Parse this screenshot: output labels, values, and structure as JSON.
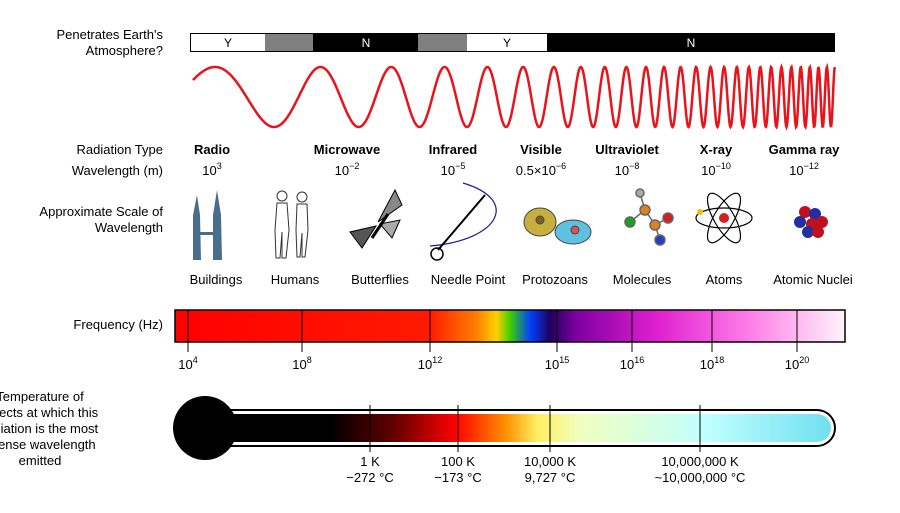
{
  "atmosphere": {
    "label": "Penetrates Earth's Atmosphere?",
    "segments": [
      "Y",
      "N",
      "Y",
      "N"
    ]
  },
  "radiation_type": {
    "label": "Radiation Type",
    "items": [
      "Radio",
      "Microwave",
      "Infrared",
      "Visible",
      "Ultraviolet",
      "X-ray",
      "Gamma ray"
    ]
  },
  "wavelength": {
    "label": "Wavelength (m)",
    "items": [
      {
        "base": "10",
        "exponent": "3"
      },
      {
        "base": "10",
        "exponent": "−2"
      },
      {
        "base": "10",
        "exponent": "−5"
      },
      {
        "base": "0.5×10",
        "exponent": "−6"
      },
      {
        "base": "10",
        "exponent": "−8"
      },
      {
        "base": "10",
        "exponent": "−10"
      },
      {
        "base": "10",
        "exponent": "−12"
      }
    ]
  },
  "scale": {
    "label": "Approximate Scale of Wavelength",
    "items": [
      "Buildings",
      "Humans",
      "Butterflies",
      "Needle Point",
      "Protozoans",
      "Molecules",
      "Atoms",
      "Atomic Nuclei"
    ]
  },
  "frequency": {
    "label": "Frequency (Hz)",
    "ticks": [
      {
        "base": "10",
        "exponent": "4"
      },
      {
        "base": "10",
        "exponent": "8"
      },
      {
        "base": "10",
        "exponent": "12"
      },
      {
        "base": "10",
        "exponent": "15"
      },
      {
        "base": "10",
        "exponent": "16"
      },
      {
        "base": "10",
        "exponent": "18"
      },
      {
        "base": "10",
        "exponent": "20"
      }
    ]
  },
  "temperature": {
    "label": "Temperature of objects at which this radiation is the most intense wavelength emitted",
    "ticks": [
      {
        "kelvin": "1 K",
        "celsius": "−272 °C"
      },
      {
        "kelvin": "100 K",
        "celsius": "−173 °C"
      },
      {
        "kelvin": "10,000 K",
        "celsius": "9,727 °C"
      },
      {
        "kelvin": "10,000,000 K",
        "celsius": "~10,000,000 °C"
      }
    ]
  }
}
